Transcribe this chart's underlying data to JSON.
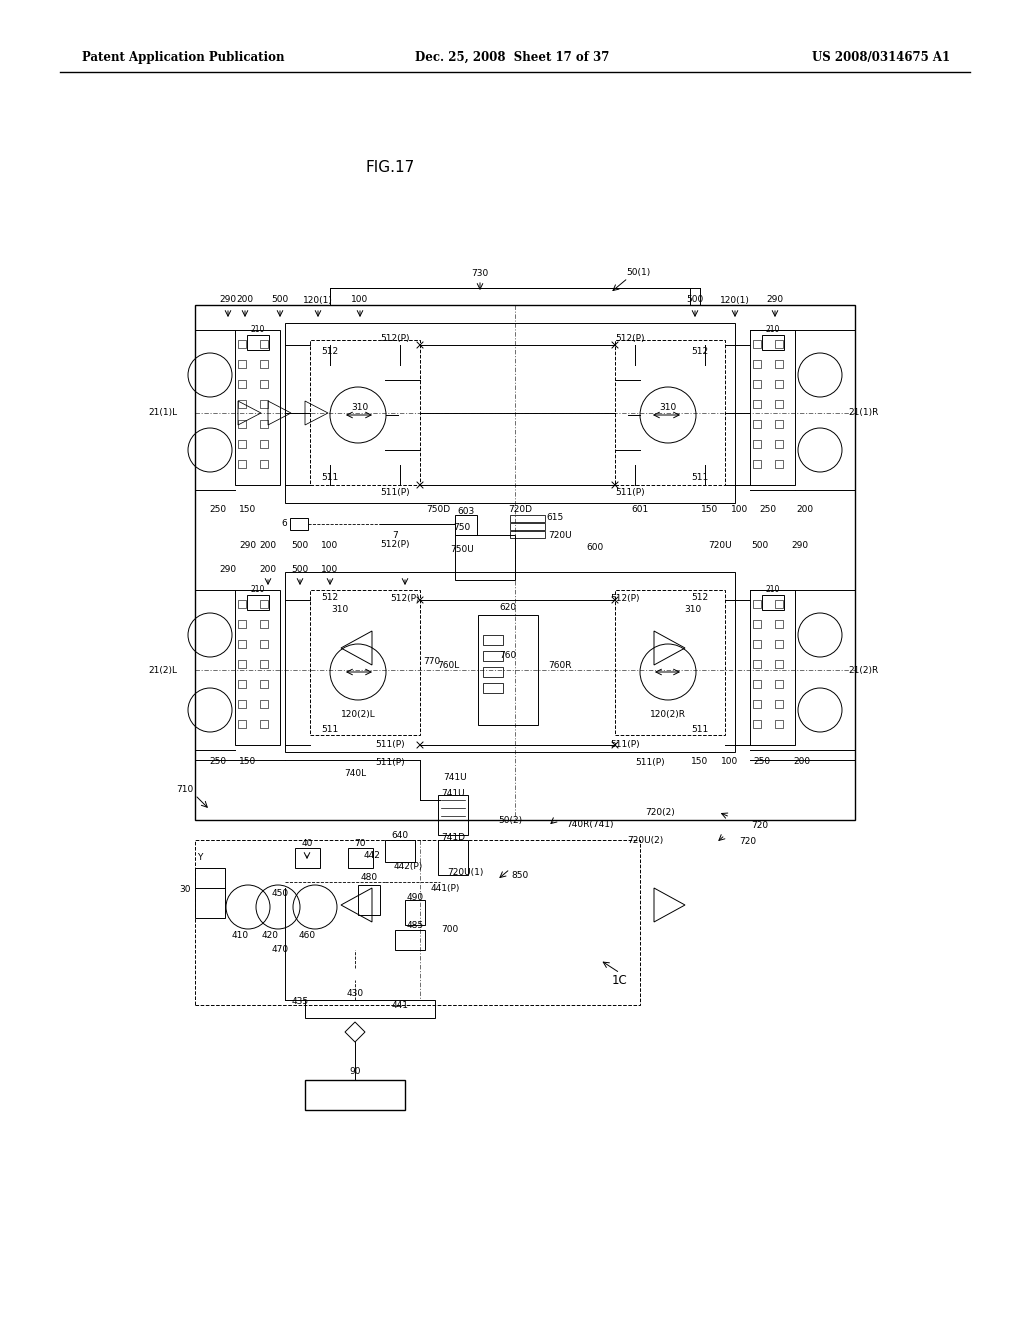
{
  "bg_color": "#ffffff",
  "header_left": "Patent Application Publication",
  "header_center": "Dec. 25, 2008  Sheet 17 of 37",
  "header_right": "US 2008/0314675 A1",
  "fig_label": "FIG.17"
}
